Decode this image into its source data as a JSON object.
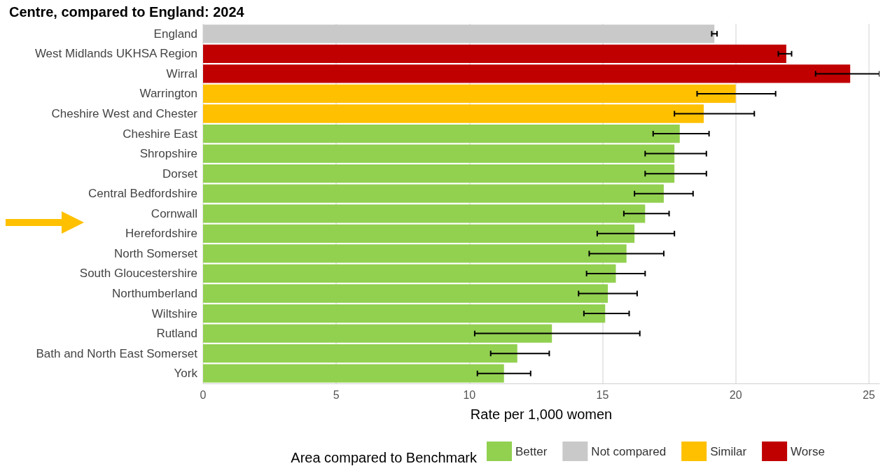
{
  "chart_data": {
    "type": "bar",
    "orientation": "horizontal",
    "title": "Centre, compared to England: 2024",
    "xlabel": "Rate per 1,000 women",
    "legend_title": "Area compared to Benchmark",
    "legend": "bottom",
    "grid": "x",
    "categories": [
      "England",
      "West Midlands UKHSA Region",
      "Wirral",
      "Warrington",
      "Cheshire West and Chester",
      "Cheshire East",
      "Shropshire",
      "Dorset",
      "Central Bedfordshire",
      "Cornwall",
      "Herefordshire",
      "North Somerset",
      "South Gloucestershire",
      "Northumberland",
      "Wiltshire",
      "Rutland",
      "Bath and North East Somerset",
      "York"
    ],
    "xlim": [
      0,
      25.4
    ],
    "xticks": [
      0,
      5,
      10,
      15,
      20,
      25
    ],
    "series": [
      {
        "name": "Better",
        "color": "#92d050",
        "values": [
          null,
          null,
          null,
          null,
          null,
          17.9,
          17.7,
          17.7,
          17.3,
          16.6,
          16.2,
          15.9,
          15.5,
          15.2,
          15.1,
          13.1,
          11.8,
          11.3
        ],
        "errors": [
          null,
          null,
          null,
          null,
          null,
          [
            16.9,
            19.0
          ],
          [
            16.6,
            18.9
          ],
          [
            16.6,
            18.9
          ],
          [
            16.2,
            18.4
          ],
          [
            15.8,
            17.5
          ],
          [
            14.8,
            17.7
          ],
          [
            14.5,
            17.3
          ],
          [
            14.4,
            16.6
          ],
          [
            14.1,
            16.3
          ],
          [
            14.3,
            16.0
          ],
          [
            10.2,
            16.4
          ],
          [
            10.8,
            13.0
          ],
          [
            10.3,
            12.3
          ]
        ]
      },
      {
        "name": "Not compared",
        "color": "#c9c9c9",
        "values": [
          19.2,
          null,
          null,
          null,
          null,
          null,
          null,
          null,
          null,
          null,
          null,
          null,
          null,
          null,
          null,
          null,
          null,
          null
        ],
        "errors": [
          [
            19.1,
            19.3
          ],
          null,
          null,
          null,
          null,
          null,
          null,
          null,
          null,
          null,
          null,
          null,
          null,
          null,
          null,
          null,
          null,
          null
        ]
      },
      {
        "name": "Similar",
        "color": "#ffc000",
        "values": [
          null,
          null,
          null,
          20.0,
          18.8,
          null,
          null,
          null,
          null,
          null,
          null,
          null,
          null,
          null,
          null,
          null,
          null,
          null
        ],
        "errors": [
          null,
          null,
          null,
          [
            18.55,
            21.5
          ],
          [
            17.7,
            20.7
          ],
          null,
          null,
          null,
          null,
          null,
          null,
          null,
          null,
          null,
          null,
          null,
          null,
          null
        ]
      },
      {
        "name": "Worse",
        "color": "#c00000",
        "values": [
          null,
          21.9,
          24.3,
          null,
          null,
          null,
          null,
          null,
          null,
          null,
          null,
          null,
          null,
          null,
          null,
          null,
          null,
          null
        ],
        "errors": [
          null,
          [
            21.6,
            22.1
          ],
          [
            23.0,
            25.4
          ],
          null,
          null,
          null,
          null,
          null,
          null,
          null,
          null,
          null,
          null,
          null,
          null,
          null,
          null,
          null
        ]
      }
    ]
  }
}
